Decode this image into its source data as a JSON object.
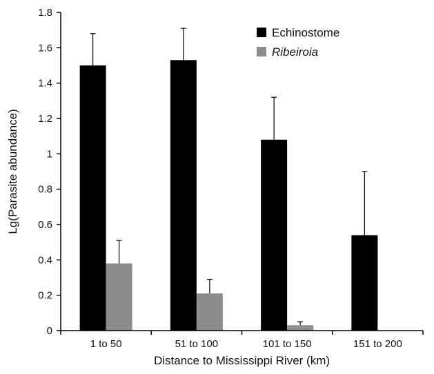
{
  "chart_data": {
    "type": "bar",
    "title": "",
    "xlabel": "Distance to Mississippi River (km)",
    "ylabel": "Lg(Parasite abundance)",
    "categories": [
      "1 to 50",
      "51 to 100",
      "101 to 150",
      "151 to 200"
    ],
    "ylim": [
      0,
      1.8
    ],
    "yticks": [
      "0",
      "0.2",
      "0.4",
      "0.6",
      "0.8",
      "1",
      "1.2",
      "1.4",
      "1.6",
      "1.8"
    ],
    "grid": false,
    "legend_position": "top-right",
    "series": [
      {
        "name": "Echinostome",
        "italic": false,
        "color": "#000000",
        "values": [
          1.5,
          1.53,
          1.08,
          0.54
        ],
        "errors": [
          0.18,
          0.18,
          0.24,
          0.36
        ]
      },
      {
        "name": "Ribeiroia",
        "italic": true,
        "color": "#8c8c8c",
        "values": [
          0.38,
          0.21,
          0.03,
          0
        ],
        "errors": [
          0.13,
          0.08,
          0.02,
          0
        ]
      }
    ]
  }
}
